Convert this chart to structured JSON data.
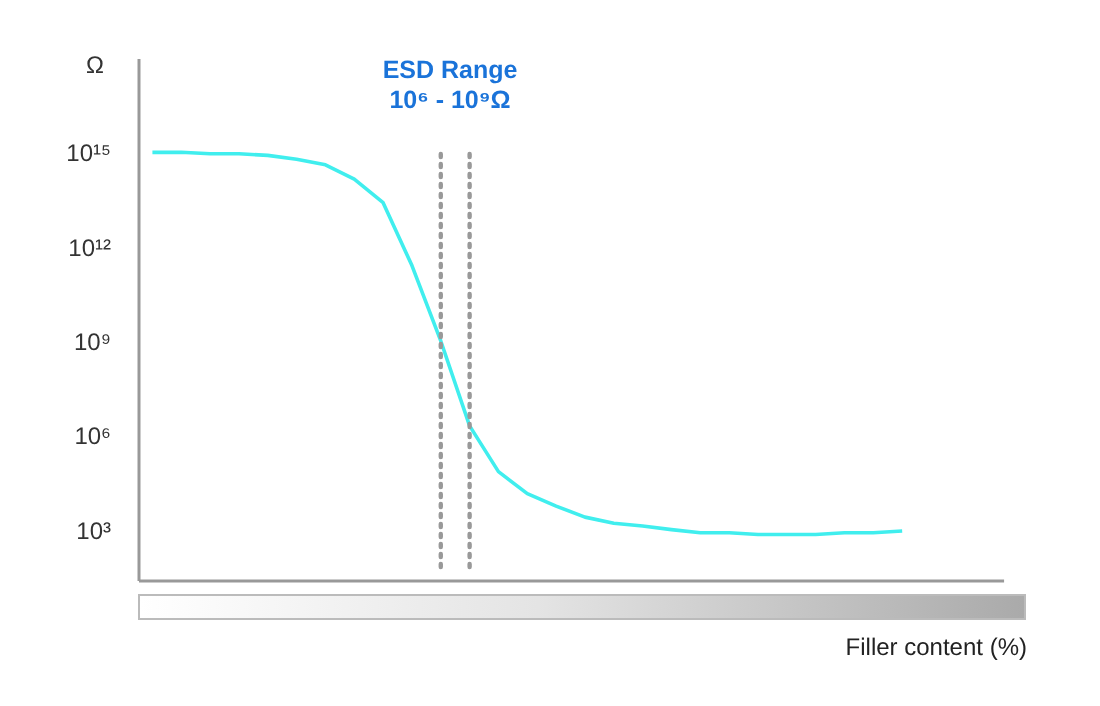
{
  "chart_data": {
    "type": "line",
    "xlabel": "Filler content (%)",
    "ylabel": "Ω",
    "categories": [
      null,
      null,
      null,
      null,
      null,
      null,
      null,
      null,
      null,
      null,
      null,
      null,
      null,
      null,
      null,
      null,
      null,
      null,
      null,
      null,
      null,
      null,
      null,
      null,
      null,
      null,
      null,
      null,
      null,
      null
    ],
    "series": [
      {
        "color": "#40eeee",
        "values": [
          1000000000000000.0,
          1000000000000000.0,
          900000000000000.0,
          900000000000000.0,
          800000000000000.0,
          600000000000000.0,
          400000000000000.0,
          140000000000000.0,
          25000000000000.0,
          250000000000.0,
          1000000000.0,
          2000000.0,
          70000.0,
          14000.0,
          5600.0,
          2500.0,
          1600.0,
          1300.0,
          1000.0,
          800.0,
          800.0,
          700.0,
          700.0,
          700.0,
          800.0,
          800.0,
          900.0,
          null,
          null,
          null
        ]
      }
    ],
    "ylim": [
      25,
      1e+18
    ],
    "log": "y",
    "yticks": [
      {
        "value": 1000,
        "label": "10³"
      },
      {
        "value": 1000000,
        "label": "10⁶"
      },
      {
        "value": 1000000000,
        "label": "10⁹"
      },
      {
        "value": 1000000000000,
        "label": "10¹²"
      },
      {
        "value": 1000000000000000,
        "label": "10¹⁵"
      }
    ],
    "tick_labels": "y",
    "grid": false,
    "marker": "none",
    "line_style": "solid",
    "annotations": [
      "ESD Range",
      "10⁶ - 10⁹Ω"
    ]
  }
}
